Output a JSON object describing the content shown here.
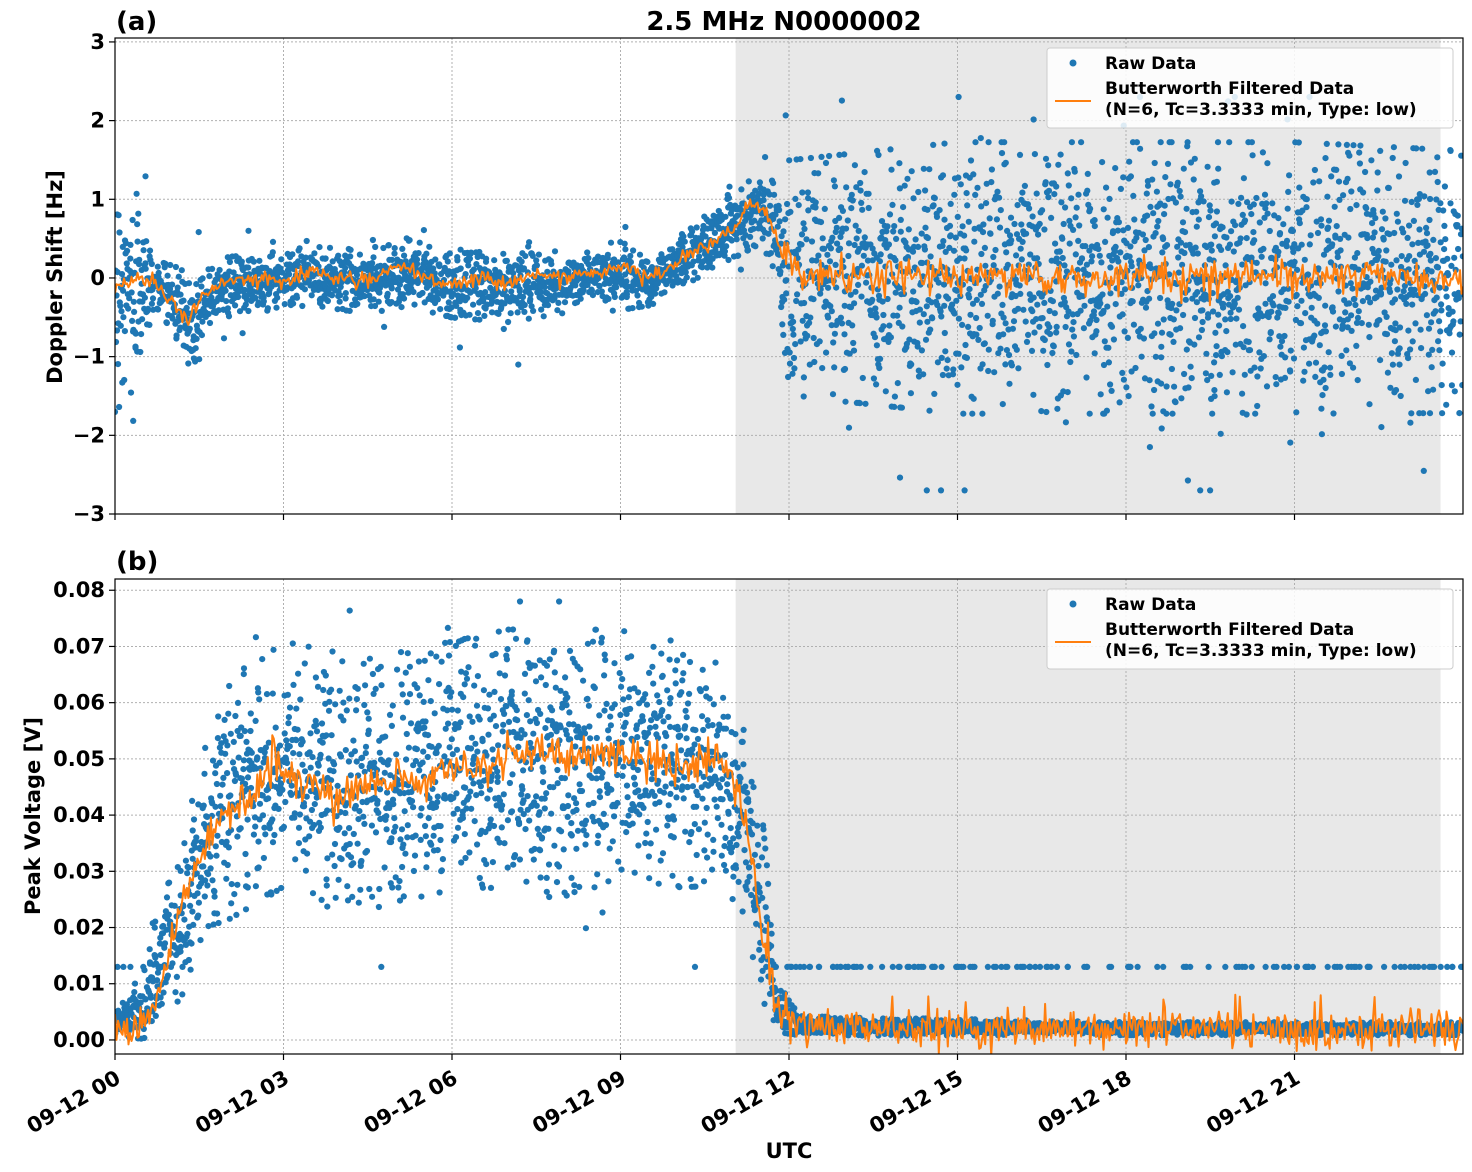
{
  "title": "2.5 MHz N0000002",
  "xlabel": "UTC",
  "colors": {
    "raw": "#1f77b4",
    "filtered": "#ff7f0e",
    "night_shade": "#d9d9d9"
  },
  "chart_data": [
    {
      "panel_label": "(a)",
      "type": "scatter",
      "ylabel": "Doppler Shift [Hz]",
      "ylim": [
        -3,
        3.05
      ],
      "yticks": [
        -3,
        -2,
        -1,
        0,
        1,
        2,
        3
      ],
      "ytick_labels": [
        "−3",
        "−2",
        "−1",
        "0",
        "1",
        "2",
        "3"
      ],
      "xlim_hours": [
        0,
        24
      ],
      "xticks_hours": [
        0,
        3,
        6,
        9,
        12,
        15,
        18,
        21
      ],
      "xtick_labels": [],
      "grid": true,
      "legend_placement": "top-right",
      "legend": [
        "Raw Data",
        "Butterworth Filtered Data",
        "(N=6, Tc=3.3333 min, Type: low)"
      ],
      "shaded_span_hours": [
        11.05,
        23.6
      ],
      "series": [
        {
          "name": "Raw Data",
          "kind": "scatter",
          "envelope": [
            {
              "x": 0.0,
              "lo": -1.5,
              "hi": 1.2
            },
            {
              "x": 0.4,
              "lo": -1.2,
              "hi": 0.9
            },
            {
              "x": 0.7,
              "lo": -0.3,
              "hi": 0.2
            },
            {
              "x": 1.0,
              "lo": -0.6,
              "hi": 0.1
            },
            {
              "x": 1.4,
              "lo": -1.2,
              "hi": 0.0
            },
            {
              "x": 1.7,
              "lo": -0.5,
              "hi": 0.2
            },
            {
              "x": 2.5,
              "lo": -0.35,
              "hi": 0.25
            },
            {
              "x": 3.5,
              "lo": -0.3,
              "hi": 0.35
            },
            {
              "x": 4.5,
              "lo": -0.4,
              "hi": 0.3
            },
            {
              "x": 5.2,
              "lo": -0.3,
              "hi": 0.45
            },
            {
              "x": 6.0,
              "lo": -0.45,
              "hi": 0.25
            },
            {
              "x": 7.0,
              "lo": -0.5,
              "hi": 0.3
            },
            {
              "x": 8.0,
              "lo": -0.4,
              "hi": 0.2
            },
            {
              "x": 8.5,
              "lo": -0.25,
              "hi": 0.3
            },
            {
              "x": 9.0,
              "lo": -0.35,
              "hi": 0.4
            },
            {
              "x": 9.6,
              "lo": -0.3,
              "hi": 0.25
            },
            {
              "x": 10.0,
              "lo": -0.1,
              "hi": 0.5
            },
            {
              "x": 10.5,
              "lo": 0.1,
              "hi": 0.75
            },
            {
              "x": 11.0,
              "lo": 0.3,
              "hi": 1.0
            },
            {
              "x": 11.5,
              "lo": 0.5,
              "hi": 1.3
            },
            {
              "x": 11.8,
              "lo": 0.1,
              "hi": 1.1
            },
            {
              "x": 12.0,
              "lo": -1.3,
              "hi": 1.3
            },
            {
              "x": 15.0,
              "lo": -1.5,
              "hi": 1.5
            },
            {
              "x": 18.0,
              "lo": -1.5,
              "hi": 1.5
            },
            {
              "x": 21.0,
              "lo": -1.5,
              "hi": 1.5
            },
            {
              "x": 24.0,
              "lo": -1.5,
              "hi": 1.4
            }
          ],
          "outlier_range": [
            -2.7,
            2.3
          ]
        },
        {
          "name": "Butterworth Filtered Data",
          "kind": "line",
          "x": [
            0.0,
            0.4,
            0.7,
            1.0,
            1.3,
            1.6,
            2.0,
            2.5,
            3.0,
            3.5,
            4.0,
            4.5,
            5.0,
            5.5,
            6.0,
            6.5,
            7.0,
            7.5,
            8.0,
            8.5,
            9.0,
            9.5,
            10.0,
            10.5,
            11.0,
            11.3,
            11.6,
            11.9,
            12.2,
            13.0,
            14.0,
            15.0,
            16.0,
            17.0,
            18.0,
            19.0,
            20.0,
            21.0,
            22.0,
            23.0,
            24.0
          ],
          "y": [
            -0.1,
            0.0,
            -0.05,
            -0.3,
            -0.55,
            -0.2,
            -0.05,
            0.0,
            -0.05,
            0.1,
            0.0,
            -0.05,
            0.15,
            0.0,
            -0.1,
            0.0,
            -0.05,
            0.05,
            0.0,
            0.05,
            0.15,
            0.0,
            0.2,
            0.4,
            0.6,
            0.95,
            0.8,
            0.3,
            0.05,
            0.0,
            0.05,
            0.0,
            0.05,
            -0.05,
            0.05,
            0.0,
            0.05,
            0.0,
            0.05,
            0.0,
            -0.05
          ],
          "noise_after_hours": 11.9,
          "noise_amplitude": 0.18
        }
      ]
    },
    {
      "panel_label": "(b)",
      "type": "scatter",
      "ylabel": "Peak Voltage [V]",
      "ylim": [
        -0.0025,
        0.082
      ],
      "yticks": [
        0.0,
        0.01,
        0.02,
        0.03,
        0.04,
        0.05,
        0.06,
        0.07,
        0.08
      ],
      "ytick_labels": [
        "0.00",
        "0.01",
        "0.02",
        "0.03",
        "0.04",
        "0.05",
        "0.06",
        "0.07",
        "0.08"
      ],
      "xlim_hours": [
        0,
        24
      ],
      "xticks_hours": [
        0,
        3,
        6,
        9,
        12,
        15,
        18,
        21
      ],
      "xtick_labels": [
        "09-12 00",
        "09-12 03",
        "09-12 06",
        "09-12 09",
        "09-12 12",
        "09-12 15",
        "09-12 18",
        "09-12 21"
      ],
      "grid": true,
      "legend_placement": "top-right",
      "legend": [
        "Raw Data",
        "Butterworth Filtered Data",
        "(N=6, Tc=3.3333 min, Type: low)"
      ],
      "shaded_span_hours": [
        11.05,
        23.6
      ],
      "series": [
        {
          "name": "Raw Data",
          "kind": "scatter",
          "envelope": [
            {
              "x": 0.0,
              "lo": 0.001,
              "hi": 0.004
            },
            {
              "x": 0.5,
              "lo": 0.001,
              "hi": 0.012
            },
            {
              "x": 0.9,
              "lo": 0.005,
              "hi": 0.025
            },
            {
              "x": 1.2,
              "lo": 0.01,
              "hi": 0.035
            },
            {
              "x": 1.6,
              "lo": 0.022,
              "hi": 0.048
            },
            {
              "x": 2.0,
              "lo": 0.024,
              "hi": 0.06
            },
            {
              "x": 3.0,
              "lo": 0.03,
              "hi": 0.068
            },
            {
              "x": 4.0,
              "lo": 0.028,
              "hi": 0.066
            },
            {
              "x": 5.0,
              "lo": 0.026,
              "hi": 0.066
            },
            {
              "x": 6.0,
              "lo": 0.03,
              "hi": 0.068
            },
            {
              "x": 7.0,
              "lo": 0.03,
              "hi": 0.07
            },
            {
              "x": 8.0,
              "lo": 0.028,
              "hi": 0.07
            },
            {
              "x": 9.0,
              "lo": 0.032,
              "hi": 0.07
            },
            {
              "x": 10.0,
              "lo": 0.03,
              "hi": 0.068
            },
            {
              "x": 10.8,
              "lo": 0.03,
              "hi": 0.064
            },
            {
              "x": 11.2,
              "lo": 0.025,
              "hi": 0.058
            },
            {
              "x": 11.5,
              "lo": 0.01,
              "hi": 0.04
            },
            {
              "x": 11.8,
              "lo": 0.002,
              "hi": 0.01
            },
            {
              "x": 12.2,
              "lo": 0.001,
              "hi": 0.004
            },
            {
              "x": 18.0,
              "lo": 0.001,
              "hi": 0.003
            },
            {
              "x": 23.5,
              "lo": 0.001,
              "hi": 0.003
            },
            {
              "x": 24.0,
              "lo": 0.001,
              "hi": 0.003
            }
          ],
          "outlier_range": [
            0.013,
            0.078
          ]
        },
        {
          "name": "Butterworth Filtered Data",
          "kind": "line",
          "x": [
            0.0,
            0.5,
            0.8,
            1.0,
            1.2,
            1.5,
            1.8,
            2.0,
            2.5,
            2.8,
            3.2,
            3.5,
            4.0,
            4.5,
            5.0,
            5.5,
            6.0,
            6.5,
            7.0,
            7.5,
            8.0,
            8.5,
            9.0,
            9.5,
            10.0,
            10.5,
            10.9,
            11.1,
            11.3,
            11.5,
            11.8,
            12.0,
            13.0,
            15.0,
            18.0,
            21.0,
            23.5,
            24.0
          ],
          "y": [
            0.002,
            0.003,
            0.01,
            0.018,
            0.024,
            0.032,
            0.038,
            0.041,
            0.044,
            0.05,
            0.046,
            0.047,
            0.042,
            0.046,
            0.047,
            0.045,
            0.049,
            0.048,
            0.05,
            0.052,
            0.05,
            0.051,
            0.05,
            0.051,
            0.048,
            0.05,
            0.049,
            0.045,
            0.035,
            0.02,
            0.006,
            0.003,
            0.002,
            0.002,
            0.002,
            0.002,
            0.002,
            0.002
          ],
          "noise_after_hours": 0,
          "noise_amplitude": 0.003
        }
      ]
    }
  ]
}
